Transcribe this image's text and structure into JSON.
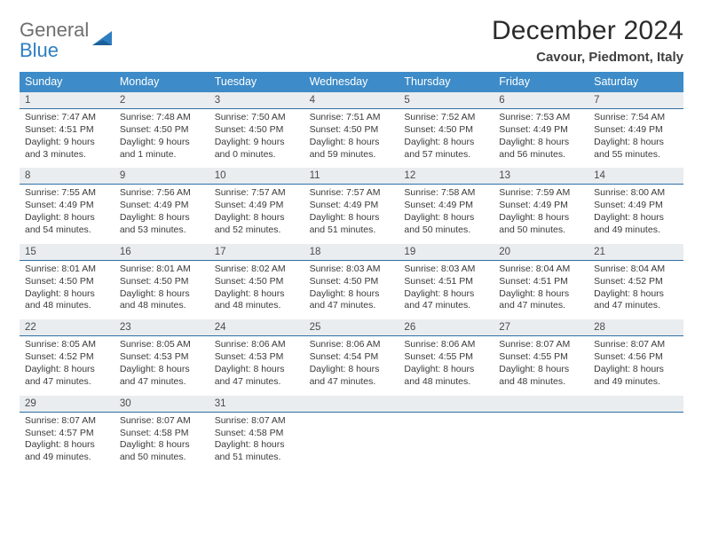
{
  "logo": {
    "line1": "General",
    "line2": "Blue"
  },
  "title": "December 2024",
  "location": "Cavour, Piedmont, Italy",
  "weekdays": [
    "Sunday",
    "Monday",
    "Tuesday",
    "Wednesday",
    "Thursday",
    "Friday",
    "Saturday"
  ],
  "colors": {
    "header_bg": "#3d8bc8",
    "header_fg": "#ffffff",
    "daynum_bg": "#eaedef",
    "divider": "#2f6fa6",
    "logo_gray": "#6f6f6f",
    "logo_blue": "#2f7ec2"
  },
  "weeks": [
    [
      {
        "n": "1",
        "sunrise": "Sunrise: 7:47 AM",
        "sunset": "Sunset: 4:51 PM",
        "daylight": "Daylight: 9 hours and 3 minutes."
      },
      {
        "n": "2",
        "sunrise": "Sunrise: 7:48 AM",
        "sunset": "Sunset: 4:50 PM",
        "daylight": "Daylight: 9 hours and 1 minute."
      },
      {
        "n": "3",
        "sunrise": "Sunrise: 7:50 AM",
        "sunset": "Sunset: 4:50 PM",
        "daylight": "Daylight: 9 hours and 0 minutes."
      },
      {
        "n": "4",
        "sunrise": "Sunrise: 7:51 AM",
        "sunset": "Sunset: 4:50 PM",
        "daylight": "Daylight: 8 hours and 59 minutes."
      },
      {
        "n": "5",
        "sunrise": "Sunrise: 7:52 AM",
        "sunset": "Sunset: 4:50 PM",
        "daylight": "Daylight: 8 hours and 57 minutes."
      },
      {
        "n": "6",
        "sunrise": "Sunrise: 7:53 AM",
        "sunset": "Sunset: 4:49 PM",
        "daylight": "Daylight: 8 hours and 56 minutes."
      },
      {
        "n": "7",
        "sunrise": "Sunrise: 7:54 AM",
        "sunset": "Sunset: 4:49 PM",
        "daylight": "Daylight: 8 hours and 55 minutes."
      }
    ],
    [
      {
        "n": "8",
        "sunrise": "Sunrise: 7:55 AM",
        "sunset": "Sunset: 4:49 PM",
        "daylight": "Daylight: 8 hours and 54 minutes."
      },
      {
        "n": "9",
        "sunrise": "Sunrise: 7:56 AM",
        "sunset": "Sunset: 4:49 PM",
        "daylight": "Daylight: 8 hours and 53 minutes."
      },
      {
        "n": "10",
        "sunrise": "Sunrise: 7:57 AM",
        "sunset": "Sunset: 4:49 PM",
        "daylight": "Daylight: 8 hours and 52 minutes."
      },
      {
        "n": "11",
        "sunrise": "Sunrise: 7:57 AM",
        "sunset": "Sunset: 4:49 PM",
        "daylight": "Daylight: 8 hours and 51 minutes."
      },
      {
        "n": "12",
        "sunrise": "Sunrise: 7:58 AM",
        "sunset": "Sunset: 4:49 PM",
        "daylight": "Daylight: 8 hours and 50 minutes."
      },
      {
        "n": "13",
        "sunrise": "Sunrise: 7:59 AM",
        "sunset": "Sunset: 4:49 PM",
        "daylight": "Daylight: 8 hours and 50 minutes."
      },
      {
        "n": "14",
        "sunrise": "Sunrise: 8:00 AM",
        "sunset": "Sunset: 4:49 PM",
        "daylight": "Daylight: 8 hours and 49 minutes."
      }
    ],
    [
      {
        "n": "15",
        "sunrise": "Sunrise: 8:01 AM",
        "sunset": "Sunset: 4:50 PM",
        "daylight": "Daylight: 8 hours and 48 minutes."
      },
      {
        "n": "16",
        "sunrise": "Sunrise: 8:01 AM",
        "sunset": "Sunset: 4:50 PM",
        "daylight": "Daylight: 8 hours and 48 minutes."
      },
      {
        "n": "17",
        "sunrise": "Sunrise: 8:02 AM",
        "sunset": "Sunset: 4:50 PM",
        "daylight": "Daylight: 8 hours and 48 minutes."
      },
      {
        "n": "18",
        "sunrise": "Sunrise: 8:03 AM",
        "sunset": "Sunset: 4:50 PM",
        "daylight": "Daylight: 8 hours and 47 minutes."
      },
      {
        "n": "19",
        "sunrise": "Sunrise: 8:03 AM",
        "sunset": "Sunset: 4:51 PM",
        "daylight": "Daylight: 8 hours and 47 minutes."
      },
      {
        "n": "20",
        "sunrise": "Sunrise: 8:04 AM",
        "sunset": "Sunset: 4:51 PM",
        "daylight": "Daylight: 8 hours and 47 minutes."
      },
      {
        "n": "21",
        "sunrise": "Sunrise: 8:04 AM",
        "sunset": "Sunset: 4:52 PM",
        "daylight": "Daylight: 8 hours and 47 minutes."
      }
    ],
    [
      {
        "n": "22",
        "sunrise": "Sunrise: 8:05 AM",
        "sunset": "Sunset: 4:52 PM",
        "daylight": "Daylight: 8 hours and 47 minutes."
      },
      {
        "n": "23",
        "sunrise": "Sunrise: 8:05 AM",
        "sunset": "Sunset: 4:53 PM",
        "daylight": "Daylight: 8 hours and 47 minutes."
      },
      {
        "n": "24",
        "sunrise": "Sunrise: 8:06 AM",
        "sunset": "Sunset: 4:53 PM",
        "daylight": "Daylight: 8 hours and 47 minutes."
      },
      {
        "n": "25",
        "sunrise": "Sunrise: 8:06 AM",
        "sunset": "Sunset: 4:54 PM",
        "daylight": "Daylight: 8 hours and 47 minutes."
      },
      {
        "n": "26",
        "sunrise": "Sunrise: 8:06 AM",
        "sunset": "Sunset: 4:55 PM",
        "daylight": "Daylight: 8 hours and 48 minutes."
      },
      {
        "n": "27",
        "sunrise": "Sunrise: 8:07 AM",
        "sunset": "Sunset: 4:55 PM",
        "daylight": "Daylight: 8 hours and 48 minutes."
      },
      {
        "n": "28",
        "sunrise": "Sunrise: 8:07 AM",
        "sunset": "Sunset: 4:56 PM",
        "daylight": "Daylight: 8 hours and 49 minutes."
      }
    ],
    [
      {
        "n": "29",
        "sunrise": "Sunrise: 8:07 AM",
        "sunset": "Sunset: 4:57 PM",
        "daylight": "Daylight: 8 hours and 49 minutes."
      },
      {
        "n": "30",
        "sunrise": "Sunrise: 8:07 AM",
        "sunset": "Sunset: 4:58 PM",
        "daylight": "Daylight: 8 hours and 50 minutes."
      },
      {
        "n": "31",
        "sunrise": "Sunrise: 8:07 AM",
        "sunset": "Sunset: 4:58 PM",
        "daylight": "Daylight: 8 hours and 51 minutes."
      },
      null,
      null,
      null,
      null
    ]
  ]
}
